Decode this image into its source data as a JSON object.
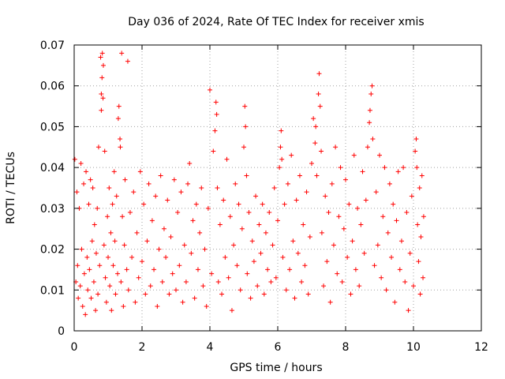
{
  "chart_data": {
    "type": "scatter",
    "title": "Day 036 of 2024, Rate Of TEC Index for receiver xmis",
    "xlabel": "GPS time / hours",
    "ylabel": "ROTI / TECUs",
    "xlim": [
      0,
      12
    ],
    "ylim": [
      0,
      0.07
    ],
    "xticks": [
      0,
      2,
      4,
      6,
      8,
      10,
      12
    ],
    "yticks": [
      0,
      0.01,
      0.02,
      0.03,
      0.04,
      0.05,
      0.06,
      0.07
    ],
    "x_tick_labels": [
      "0",
      "2",
      "4",
      "6",
      "8",
      "10",
      "12"
    ],
    "y_tick_labels": [
      "0",
      "0.01",
      "0.02",
      "0.03",
      "0.04",
      "0.05",
      "0.06",
      "0.07"
    ],
    "grid": true,
    "marker": "plus",
    "color": "#ff0000",
    "series": [
      {
        "name": "ROTI",
        "points": [
          [
            0.02,
            0.042
          ],
          [
            0.05,
            0.012
          ],
          [
            0.08,
            0.034
          ],
          [
            0.1,
            0.016
          ],
          [
            0.12,
            0.008
          ],
          [
            0.15,
            0.03
          ],
          [
            0.18,
            0.011
          ],
          [
            0.2,
            0.041
          ],
          [
            0.22,
            0.02
          ],
          [
            0.25,
            0.006
          ],
          [
            0.28,
            0.036
          ],
          [
            0.3,
            0.014
          ],
          [
            0.33,
            0.004
          ],
          [
            0.35,
            0.039
          ],
          [
            0.38,
            0.018
          ],
          [
            0.4,
            0.01
          ],
          [
            0.43,
            0.031
          ],
          [
            0.45,
            0.015
          ],
          [
            0.48,
            0.037
          ],
          [
            0.5,
            0.008
          ],
          [
            0.53,
            0.022
          ],
          [
            0.55,
            0.035
          ],
          [
            0.58,
            0.012
          ],
          [
            0.6,
            0.026
          ],
          [
            0.63,
            0.005
          ],
          [
            0.65,
            0.019
          ],
          [
            0.68,
            0.03
          ],
          [
            0.7,
            0.009
          ],
          [
            0.72,
            0.045
          ],
          [
            0.75,
            0.016
          ],
          [
            0.78,
            0.067
          ],
          [
            0.8,
            0.054
          ],
          [
            0.8,
            0.058
          ],
          [
            0.82,
            0.062
          ],
          [
            0.83,
            0.068
          ],
          [
            0.85,
            0.057
          ],
          [
            0.86,
            0.065
          ],
          [
            0.88,
            0.021
          ],
          [
            0.9,
            0.044
          ],
          [
            0.92,
            0.013
          ],
          [
            0.95,
            0.007
          ],
          [
            0.98,
            0.028
          ],
          [
            1.0,
            0.018
          ],
          [
            1.03,
            0.035
          ],
          [
            1.05,
            0.011
          ],
          [
            1.08,
            0.024
          ],
          [
            1.1,
            0.005
          ],
          [
            1.13,
            0.031
          ],
          [
            1.15,
            0.016
          ],
          [
            1.18,
            0.039
          ],
          [
            1.2,
            0.022
          ],
          [
            1.22,
            0.009
          ],
          [
            1.25,
            0.033
          ],
          [
            1.28,
            0.014
          ],
          [
            1.3,
            0.052
          ],
          [
            1.32,
            0.055
          ],
          [
            1.35,
            0.047
          ],
          [
            1.36,
            0.045
          ],
          [
            1.38,
            0.012
          ],
          [
            1.4,
            0.068
          ],
          [
            1.42,
            0.028
          ],
          [
            1.45,
            0.006
          ],
          [
            1.48,
            0.021
          ],
          [
            1.5,
            0.037
          ],
          [
            1.55,
            0.015
          ],
          [
            1.58,
            0.066
          ],
          [
            1.6,
            0.01
          ],
          [
            1.65,
            0.029
          ],
          [
            1.7,
            0.018
          ],
          [
            1.75,
            0.034
          ],
          [
            1.8,
            0.007
          ],
          [
            1.85,
            0.024
          ],
          [
            1.9,
            0.013
          ],
          [
            1.95,
            0.039
          ],
          [
            2.0,
            0.017
          ],
          [
            2.05,
            0.031
          ],
          [
            2.1,
            0.009
          ],
          [
            2.15,
            0.022
          ],
          [
            2.2,
            0.036
          ],
          [
            2.25,
            0.011
          ],
          [
            2.3,
            0.027
          ],
          [
            2.35,
            0.015
          ],
          [
            2.4,
            0.033
          ],
          [
            2.45,
            0.006
          ],
          [
            2.5,
            0.02
          ],
          [
            2.55,
            0.038
          ],
          [
            2.6,
            0.012
          ],
          [
            2.65,
            0.025
          ],
          [
            2.7,
            0.018
          ],
          [
            2.75,
            0.032
          ],
          [
            2.8,
            0.009
          ],
          [
            2.85,
            0.023
          ],
          [
            2.9,
            0.014
          ],
          [
            2.95,
            0.037
          ],
          [
            3.0,
            0.01
          ],
          [
            3.05,
            0.029
          ],
          [
            3.1,
            0.016
          ],
          [
            3.15,
            0.034
          ],
          [
            3.2,
            0.007
          ],
          [
            3.25,
            0.021
          ],
          [
            3.3,
            0.012
          ],
          [
            3.35,
            0.036
          ],
          [
            3.4,
            0.041
          ],
          [
            3.45,
            0.019
          ],
          [
            3.5,
            0.027
          ],
          [
            3.55,
            0.008
          ],
          [
            3.6,
            0.031
          ],
          [
            3.65,
            0.015
          ],
          [
            3.7,
            0.024
          ],
          [
            3.75,
            0.035
          ],
          [
            3.8,
            0.011
          ],
          [
            3.85,
            0.02
          ],
          [
            3.9,
            0.006
          ],
          [
            3.95,
            0.03
          ],
          [
            4.0,
            0.059
          ],
          [
            4.05,
            0.014
          ],
          [
            4.1,
            0.044
          ],
          [
            4.15,
            0.049
          ],
          [
            4.18,
            0.056
          ],
          [
            4.2,
            0.053
          ],
          [
            4.22,
            0.035
          ],
          [
            4.25,
            0.012
          ],
          [
            4.3,
            0.026
          ],
          [
            4.35,
            0.009
          ],
          [
            4.4,
            0.032
          ],
          [
            4.45,
            0.018
          ],
          [
            4.5,
            0.042
          ],
          [
            4.55,
            0.013
          ],
          [
            4.6,
            0.028
          ],
          [
            4.65,
            0.005
          ],
          [
            4.7,
            0.021
          ],
          [
            4.75,
            0.036
          ],
          [
            4.8,
            0.016
          ],
          [
            4.85,
            0.031
          ],
          [
            4.9,
            0.01
          ],
          [
            4.95,
            0.025
          ],
          [
            5.0,
            0.045
          ],
          [
            5.03,
            0.055
          ],
          [
            5.05,
            0.05
          ],
          [
            5.08,
            0.038
          ],
          [
            5.1,
            0.014
          ],
          [
            5.15,
            0.029
          ],
          [
            5.2,
            0.008
          ],
          [
            5.25,
            0.022
          ],
          [
            5.3,
            0.017
          ],
          [
            5.35,
            0.033
          ],
          [
            5.4,
            0.011
          ],
          [
            5.45,
            0.026
          ],
          [
            5.5,
            0.019
          ],
          [
            5.55,
            0.031
          ],
          [
            5.6,
            0.009
          ],
          [
            5.65,
            0.024
          ],
          [
            5.7,
            0.015
          ],
          [
            5.75,
            0.029
          ],
          [
            5.8,
            0.012
          ],
          [
            5.85,
            0.021
          ],
          [
            5.9,
            0.035
          ],
          [
            5.95,
            0.013
          ],
          [
            6.0,
            0.027
          ],
          [
            6.05,
            0.04
          ],
          [
            6.08,
            0.045
          ],
          [
            6.1,
            0.049
          ],
          [
            6.12,
            0.042
          ],
          [
            6.15,
            0.018
          ],
          [
            6.2,
            0.031
          ],
          [
            6.25,
            0.01
          ],
          [
            6.3,
            0.036
          ],
          [
            6.35,
            0.015
          ],
          [
            6.4,
            0.043
          ],
          [
            6.45,
            0.022
          ],
          [
            6.5,
            0.008
          ],
          [
            6.55,
            0.032
          ],
          [
            6.6,
            0.019
          ],
          [
            6.65,
            0.038
          ],
          [
            6.7,
            0.012
          ],
          [
            6.75,
            0.026
          ],
          [
            6.8,
            0.016
          ],
          [
            6.85,
            0.034
          ],
          [
            6.9,
            0.009
          ],
          [
            6.95,
            0.023
          ],
          [
            7.0,
            0.041
          ],
          [
            7.05,
            0.052
          ],
          [
            7.1,
            0.046
          ],
          [
            7.12,
            0.05
          ],
          [
            7.15,
            0.038
          ],
          [
            7.2,
            0.058
          ],
          [
            7.22,
            0.063
          ],
          [
            7.25,
            0.055
          ],
          [
            7.28,
            0.044
          ],
          [
            7.3,
            0.024
          ],
          [
            7.35,
            0.011
          ],
          [
            7.4,
            0.033
          ],
          [
            7.45,
            0.017
          ],
          [
            7.5,
            0.029
          ],
          [
            7.55,
            0.007
          ],
          [
            7.6,
            0.036
          ],
          [
            7.65,
            0.021
          ],
          [
            7.7,
            0.045
          ],
          [
            7.75,
            0.014
          ],
          [
            7.8,
            0.028
          ],
          [
            7.85,
            0.04
          ],
          [
            7.9,
            0.012
          ],
          [
            7.95,
            0.025
          ],
          [
            8.0,
            0.037
          ],
          [
            8.05,
            0.018
          ],
          [
            8.1,
            0.031
          ],
          [
            8.15,
            0.009
          ],
          [
            8.2,
            0.022
          ],
          [
            8.25,
            0.043
          ],
          [
            8.3,
            0.015
          ],
          [
            8.35,
            0.03
          ],
          [
            8.4,
            0.011
          ],
          [
            8.45,
            0.026
          ],
          [
            8.5,
            0.039
          ],
          [
            8.55,
            0.019
          ],
          [
            8.6,
            0.032
          ],
          [
            8.65,
            0.045
          ],
          [
            8.7,
            0.051
          ],
          [
            8.72,
            0.054
          ],
          [
            8.75,
            0.058
          ],
          [
            8.78,
            0.06
          ],
          [
            8.8,
            0.047
          ],
          [
            8.85,
            0.016
          ],
          [
            8.9,
            0.034
          ],
          [
            8.95,
            0.021
          ],
          [
            9.0,
            0.043
          ],
          [
            9.05,
            0.013
          ],
          [
            9.1,
            0.028
          ],
          [
            9.15,
            0.04
          ],
          [
            9.2,
            0.01
          ],
          [
            9.25,
            0.024
          ],
          [
            9.3,
            0.036
          ],
          [
            9.35,
            0.018
          ],
          [
            9.4,
            0.031
          ],
          [
            9.45,
            0.007
          ],
          [
            9.5,
            0.027
          ],
          [
            9.55,
            0.039
          ],
          [
            9.6,
            0.015
          ],
          [
            9.65,
            0.022
          ],
          [
            9.7,
            0.04
          ],
          [
            9.75,
            0.012
          ],
          [
            9.8,
            0.029
          ],
          [
            9.85,
            0.005
          ],
          [
            9.9,
            0.019
          ],
          [
            9.95,
            0.033
          ],
          [
            10.0,
            0.011
          ],
          [
            10.05,
            0.044
          ],
          [
            10.08,
            0.047
          ],
          [
            10.1,
            0.04
          ],
          [
            10.12,
            0.026
          ],
          [
            10.15,
            0.017
          ],
          [
            10.18,
            0.035
          ],
          [
            10.2,
            0.009
          ],
          [
            10.22,
            0.023
          ],
          [
            10.25,
            0.038
          ],
          [
            10.28,
            0.013
          ],
          [
            10.3,
            0.028
          ]
        ]
      }
    ]
  }
}
